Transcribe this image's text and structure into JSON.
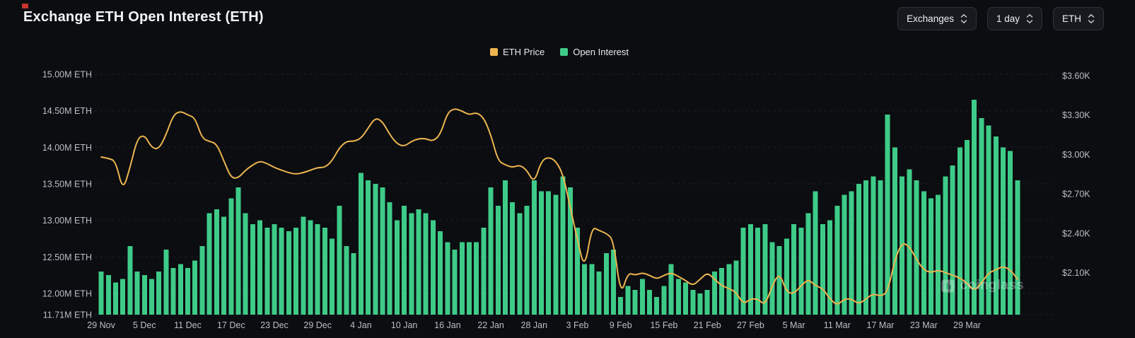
{
  "header": {
    "controls": [
      {
        "label": "Exchanges"
      },
      {
        "label": "1 day"
      },
      {
        "label": "ETH"
      }
    ]
  },
  "watermark": "coinglass",
  "chart_data": {
    "type": "bar+line",
    "title": "Exchange ETH Open Interest (ETH)",
    "x_tick_labels": [
      "29 Nov",
      "5 Dec",
      "11 Dec",
      "17 Dec",
      "23 Dec",
      "29 Dec",
      "4 Jan",
      "10 Jan",
      "16 Jan",
      "22 Jan",
      "28 Jan",
      "3 Feb",
      "9 Feb",
      "15 Feb",
      "21 Feb",
      "27 Feb",
      "5 Mar",
      "11 Mar",
      "17 Mar",
      "23 Mar",
      "29 Mar"
    ],
    "x_tick_every": 6,
    "grid": "horizontal-dashed",
    "legend_position": "top-center",
    "left_axis": {
      "title": "Open Interest (M ETH)",
      "min": 11.71,
      "max": 15.0,
      "ticks": [
        {
          "label": "15.00M ETH",
          "value": 15.0
        },
        {
          "label": "14.50M ETH",
          "value": 14.5
        },
        {
          "label": "14.00M ETH",
          "value": 14.0
        },
        {
          "label": "13.50M ETH",
          "value": 13.5
        },
        {
          "label": "13.00M ETH",
          "value": 13.0
        },
        {
          "label": "12.50M ETH",
          "value": 12.5
        },
        {
          "label": "12.00M ETH",
          "value": 12.0
        },
        {
          "label": "11.71M ETH",
          "value": 11.71
        }
      ]
    },
    "right_axis": {
      "title": "ETH Price ($K)",
      "min": 1.78,
      "max": 3.61,
      "ticks": [
        {
          "label": "$3.60K",
          "value": 3.6
        },
        {
          "label": "$3.30K",
          "value": 3.3
        },
        {
          "label": "$3.00K",
          "value": 3.0
        },
        {
          "label": "$2.70K",
          "value": 2.7
        },
        {
          "label": "$2.40K",
          "value": 2.4
        },
        {
          "label": "$2.10K",
          "value": 2.1
        }
      ]
    },
    "series": [
      {
        "name": "Open Interest",
        "type": "bar",
        "axis": "left",
        "unit": "M ETH",
        "color": "#3ecb88",
        "values": [
          12.3,
          12.25,
          12.15,
          12.2,
          12.65,
          12.3,
          12.25,
          12.2,
          12.3,
          12.6,
          12.35,
          12.4,
          12.35,
          12.45,
          12.65,
          13.1,
          13.15,
          13.05,
          13.3,
          13.45,
          13.1,
          12.95,
          13.0,
          12.9,
          12.95,
          12.9,
          12.85,
          12.9,
          13.05,
          13.0,
          12.95,
          12.9,
          12.75,
          13.2,
          12.65,
          12.55,
          13.65,
          13.55,
          13.5,
          13.45,
          13.25,
          13.0,
          13.2,
          13.1,
          13.15,
          13.1,
          13.0,
          12.85,
          12.7,
          12.6,
          12.7,
          12.7,
          12.7,
          12.9,
          13.45,
          13.2,
          13.55,
          13.25,
          13.1,
          13.2,
          13.55,
          13.4,
          13.4,
          13.35,
          13.6,
          13.45,
          12.9,
          12.4,
          12.4,
          12.3,
          12.55,
          12.6,
          11.95,
          12.1,
          12.05,
          12.2,
          12.05,
          11.95,
          12.1,
          12.4,
          12.2,
          12.15,
          12.05,
          12.0,
          12.05,
          12.3,
          12.35,
          12.4,
          12.45,
          12.9,
          12.95,
          12.9,
          12.95,
          12.7,
          12.65,
          12.75,
          12.95,
          12.9,
          13.1,
          13.4,
          12.95,
          13.0,
          13.2,
          13.35,
          13.4,
          13.5,
          13.55,
          13.6,
          13.55,
          14.45,
          14.0,
          13.6,
          13.7,
          13.55,
          13.4,
          13.3,
          13.35,
          13.6,
          13.75,
          14.0,
          14.1,
          14.65,
          14.4,
          14.3,
          14.15,
          14.0,
          13.95,
          13.55
        ]
      },
      {
        "name": "ETH Price",
        "type": "line",
        "axis": "right",
        "unit": "$K",
        "color": "#edb54f",
        "values": [
          2.98,
          2.97,
          2.95,
          2.72,
          2.9,
          3.12,
          3.15,
          3.05,
          3.04,
          3.15,
          3.3,
          3.33,
          3.3,
          3.28,
          3.12,
          3.1,
          3.08,
          2.95,
          2.82,
          2.82,
          2.88,
          2.92,
          2.95,
          2.93,
          2.9,
          2.88,
          2.86,
          2.85,
          2.86,
          2.88,
          2.9,
          2.9,
          2.95,
          3.05,
          3.1,
          3.1,
          3.12,
          3.2,
          3.28,
          3.25,
          3.15,
          3.08,
          3.06,
          3.1,
          3.12,
          3.12,
          3.1,
          3.15,
          3.32,
          3.35,
          3.33,
          3.3,
          3.32,
          3.28,
          3.15,
          2.95,
          2.92,
          2.9,
          2.92,
          2.88,
          2.78,
          2.95,
          2.98,
          2.95,
          2.85,
          2.6,
          2.35,
          2.12,
          2.45,
          2.42,
          2.4,
          2.35,
          1.92,
          2.1,
          2.08,
          2.1,
          2.08,
          2.05,
          2.08,
          2.1,
          2.07,
          2.04,
          2.0,
          2.05,
          2.1,
          2.05,
          2.0,
          1.98,
          1.95,
          1.86,
          1.9,
          1.9,
          1.85,
          2.0,
          2.1,
          1.95,
          1.94,
          2.0,
          2.05,
          2.0,
          1.98,
          1.9,
          1.85,
          1.9,
          1.9,
          1.86,
          1.9,
          1.94,
          1.92,
          1.95,
          2.2,
          2.33,
          2.3,
          2.2,
          2.12,
          2.1,
          2.12,
          2.1,
          2.08,
          2.06,
          2.02,
          1.96,
          2.02,
          2.1,
          2.12,
          2.15,
          2.12,
          2.05
        ]
      }
    ]
  }
}
